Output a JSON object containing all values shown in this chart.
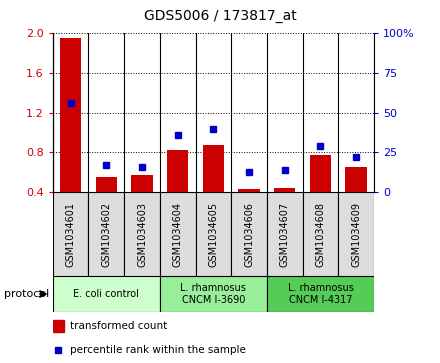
{
  "title": "GDS5006 / 173817_at",
  "samples": [
    "GSM1034601",
    "GSM1034602",
    "GSM1034603",
    "GSM1034604",
    "GSM1034605",
    "GSM1034606",
    "GSM1034607",
    "GSM1034608",
    "GSM1034609"
  ],
  "transformed_count": [
    1.95,
    0.55,
    0.57,
    0.82,
    0.87,
    0.43,
    0.44,
    0.77,
    0.65
  ],
  "percentile_rank": [
    56,
    17,
    16,
    36,
    40,
    13,
    14,
    29,
    22
  ],
  "bar_color": "#cc0000",
  "dot_color": "#0000cc",
  "ylim_left": [
    0.4,
    2.0
  ],
  "ylim_right": [
    0,
    100
  ],
  "yticks_left": [
    0.4,
    0.8,
    1.2,
    1.6,
    2.0
  ],
  "yticks_right": [
    0,
    25,
    50,
    75,
    100
  ],
  "yticklabels_right": [
    "0",
    "25",
    "50",
    "75",
    "100%"
  ],
  "protocol_groups": [
    {
      "label": "E. coli control",
      "start": 0,
      "end": 3,
      "color": "#ccffcc"
    },
    {
      "label": "L. rhamnosus\nCNCM I-3690",
      "start": 3,
      "end": 6,
      "color": "#99ee99"
    },
    {
      "label": "L. rhamnosus\nCNCM I-4317",
      "start": 6,
      "end": 9,
      "color": "#55cc55"
    }
  ],
  "legend_bar_label": "transformed count",
  "legend_dot_label": "percentile rank within the sample",
  "protocol_label": "protocol",
  "background_color": "#ffffff",
  "plot_bg_color": "#ffffff",
  "sample_box_color": "#dddddd",
  "bar_width": 0.6
}
